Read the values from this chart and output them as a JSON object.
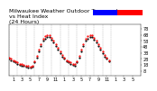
{
  "title": "Milwaukee Weather Outdoor Temperature\nvs Heat Index\n(24 Hours)",
  "title_fontsize": 4.5,
  "background_color": "#ffffff",
  "x_labels": [
    "1",
    "3",
    "5",
    "7",
    "9",
    "11",
    "1",
    "3",
    "5",
    "7",
    "9",
    "11",
    "1",
    "3",
    "5"
  ],
  "x_tick_positions": [
    2,
    6,
    10,
    14,
    18,
    22,
    26,
    30,
    34,
    38,
    42,
    46,
    50,
    54,
    58
  ],
  "y_ticks": [
    8,
    18,
    28,
    38,
    48,
    58,
    68,
    78
  ],
  "ylim": [
    0,
    85
  ],
  "xlim": [
    0,
    62
  ],
  "temp_x": [
    0,
    1,
    2,
    3,
    4,
    5,
    6,
    7,
    8,
    9,
    10,
    11,
    12,
    13,
    14,
    15,
    16,
    17,
    18,
    19,
    20,
    21,
    22,
    23,
    24,
    25,
    26,
    27,
    28,
    29,
    30,
    31,
    32,
    33,
    34,
    35,
    36,
    37,
    38,
    39,
    40,
    41,
    42,
    43,
    44,
    45,
    46,
    47
  ],
  "temp_y": [
    28,
    26,
    24,
    22,
    20,
    18,
    17,
    16,
    15,
    14,
    14,
    15,
    22,
    30,
    40,
    50,
    58,
    62,
    65,
    64,
    60,
    56,
    50,
    44,
    38,
    32,
    28,
    24,
    22,
    20,
    18,
    17,
    22,
    30,
    40,
    50,
    58,
    62,
    65,
    64,
    60,
    55,
    50,
    44,
    38,
    32,
    28,
    24
  ],
  "heat_x": [
    0,
    1,
    2,
    3,
    4,
    5,
    6,
    7,
    8,
    9,
    10,
    11,
    12,
    13,
    14,
    15,
    16,
    17,
    18,
    19,
    20,
    21,
    22,
    23,
    24,
    25,
    26,
    27,
    28,
    29,
    30,
    31,
    32,
    33,
    34,
    35,
    36,
    37,
    38,
    39,
    40,
    41,
    42,
    43,
    44,
    45,
    46,
    47
  ],
  "heat_y": [
    30,
    28,
    26,
    24,
    22,
    20,
    19,
    18,
    17,
    16,
    15,
    16,
    24,
    33,
    43,
    53,
    62,
    66,
    68,
    67,
    63,
    58,
    52,
    46,
    40,
    34,
    30,
    26,
    24,
    22,
    20,
    19,
    24,
    33,
    43,
    53,
    62,
    66,
    68,
    67,
    63,
    58,
    52,
    46,
    40,
    34,
    30,
    26
  ],
  "temp_color": "#000000",
  "heat_color": "#ff0000",
  "grid_color": "#aaaaaa",
  "legend_blue": "#0000ff",
  "legend_red": "#ff0000",
  "tick_fontsize": 3.5,
  "marker_size": 1.2,
  "grid_positions": [
    0,
    4,
    8,
    12,
    16,
    20,
    24,
    28,
    32,
    36,
    40,
    44,
    48
  ]
}
